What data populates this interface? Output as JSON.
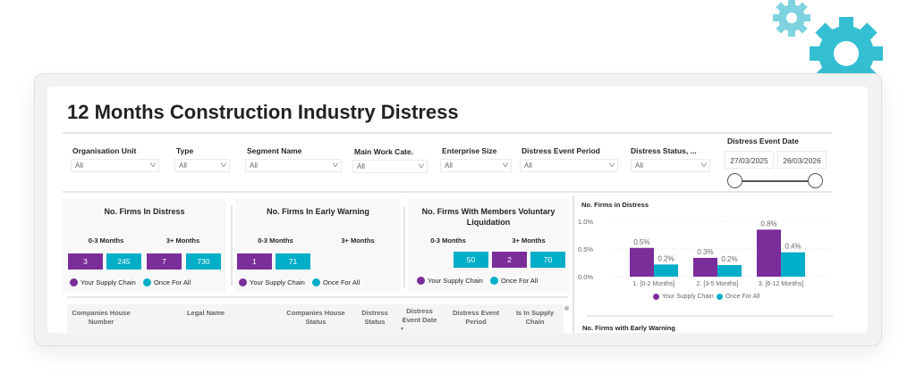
{
  "title": "12 Months Construction Industry Distress",
  "colors": {
    "your_supply_chain": "#7b2d9a",
    "once_for_all": "#00aec7",
    "gear_large": "#35bfd3",
    "gear_small": "#7fd3e0"
  },
  "filters": [
    {
      "label": "Organisation Unit",
      "value": "All"
    },
    {
      "label": "Type",
      "value": "All"
    },
    {
      "label": "Segment Name",
      "value": "All"
    },
    {
      "label": "Main Work Cate.",
      "value": "All"
    },
    {
      "label": "Enterprise Size",
      "value": "All"
    },
    {
      "label": "Distress Event Period",
      "value": "All"
    },
    {
      "label": "Distress Status, ...",
      "value": "All"
    }
  ],
  "date_filter": {
    "label": "Distress Event Date",
    "start": "27/03/2025",
    "end": "26/03/2026"
  },
  "legend": {
    "ysc": "Your Supply Chain",
    "ofa": "Once For All"
  },
  "kpi_cards": [
    {
      "title": "No. Firms In Distress",
      "col1": "0-3 Months",
      "col2": "3+ Months",
      "v1": "3",
      "v2": "245",
      "v3": "7",
      "v4": "730"
    },
    {
      "title": "No. Firms In Early Warning",
      "col1": "0-3 Months",
      "col2": "3+ Months",
      "v1": "1",
      "v2": "71"
    },
    {
      "title": "No. Firms With Members Voluntary Liquidation",
      "col1": "0-3 Months",
      "col2": "3+ Months",
      "v2": "50",
      "v3": "2",
      "v4": "70"
    }
  ],
  "table": {
    "headers": [
      "Companies House Number",
      "Legal Name",
      "Companies House Status",
      "Distress Status",
      "Distress Event Date",
      "Distress Event Period",
      "Is In Supply Chain"
    ]
  },
  "chart_data": {
    "type": "bar",
    "title": "No. Firms in Distress",
    "categories": [
      "1. [0-2 Months]",
      "2. [3-5 Months]",
      "3. [6-12 Months]"
    ],
    "series": [
      {
        "name": "Your Supply Chain",
        "values": [
          0.52,
          0.34,
          0.85
        ],
        "labels": [
          "0.5%",
          "0.3%",
          "0.8%"
        ]
      },
      {
        "name": "Once For All",
        "values": [
          0.22,
          0.21,
          0.44
        ],
        "labels": [
          "0.2%",
          "0.2%",
          "0.4%"
        ]
      }
    ],
    "yticks": [
      "0.0%",
      "0.5%",
      "1.0%"
    ],
    "ylim": [
      0,
      1.0
    ],
    "grid": true,
    "legend_position": "bottom"
  },
  "next_chart_title": "No. Firms with Early Warning"
}
